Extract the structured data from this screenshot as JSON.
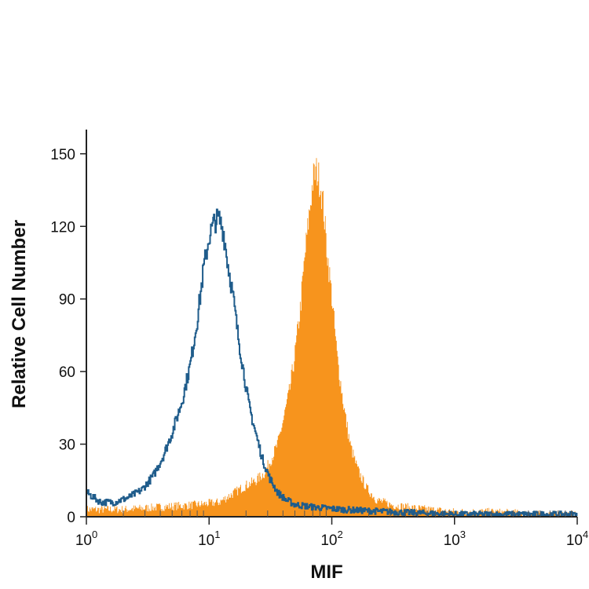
{
  "chart_data": {
    "type": "area",
    "xlabel": "MIF",
    "ylabel": "Relative Cell Number",
    "xscale": "log",
    "xlim": [
      1,
      10000
    ],
    "ylim": [
      0,
      160
    ],
    "x_ticks": [
      {
        "value": 1,
        "base": "10",
        "exp": "0"
      },
      {
        "value": 10,
        "base": "10",
        "exp": "1"
      },
      {
        "value": 100,
        "base": "10",
        "exp": "2"
      },
      {
        "value": 1000,
        "base": "10",
        "exp": "3"
      },
      {
        "value": 10000,
        "base": "10",
        "exp": "4"
      }
    ],
    "y_ticks": [
      0,
      30,
      60,
      90,
      120,
      150
    ],
    "grid": false,
    "series": [
      {
        "style": "filled",
        "color": "#F7941D",
        "x": [
          1.0,
          2.0,
          4.0,
          8.0,
          12.0,
          16.0,
          20.0,
          24.0,
          28.0,
          32.0,
          36.0,
          40.0,
          45.0,
          50.0,
          55.0,
          60.0,
          65.0,
          70.0,
          75.0,
          80.0,
          85.0,
          90.0,
          100.0,
          110.0,
          125.0,
          140.0,
          160.0,
          190.0,
          230.0,
          300.0,
          400.0,
          600.0,
          1000.0,
          2000.0,
          5000.0,
          10000.0
        ],
        "values": [
          3,
          3,
          4,
          5,
          6,
          10,
          13,
          15,
          18,
          24,
          30,
          40,
          52,
          68,
          86,
          108,
          125,
          140,
          143,
          138,
          128,
          112,
          90,
          66,
          45,
          30,
          20,
          12,
          7,
          5,
          4,
          3,
          2,
          2,
          1,
          1
        ]
      },
      {
        "style": "outline",
        "color": "#1F5C8B",
        "x": [
          1.0,
          1.3,
          1.7,
          2.2,
          2.8,
          3.5,
          4.2,
          5.0,
          6.0,
          7.0,
          8.0,
          9.0,
          10.0,
          11.0,
          12.0,
          13.0,
          14.0,
          15.5,
          17.0,
          19.0,
          21.0,
          24.0,
          27.0,
          31.0,
          36.0,
          42.0,
          50.0,
          70.0,
          120.0,
          300.0,
          1000.0,
          10000.0
        ],
        "values": [
          10,
          6,
          6,
          8,
          11,
          17,
          25,
          35,
          48,
          63,
          82,
          103,
          116,
          122,
          123,
          118,
          106,
          92,
          76,
          60,
          46,
          34,
          24,
          16,
          10,
          7,
          5,
          4,
          3,
          2,
          1,
          1
        ]
      }
    ]
  }
}
